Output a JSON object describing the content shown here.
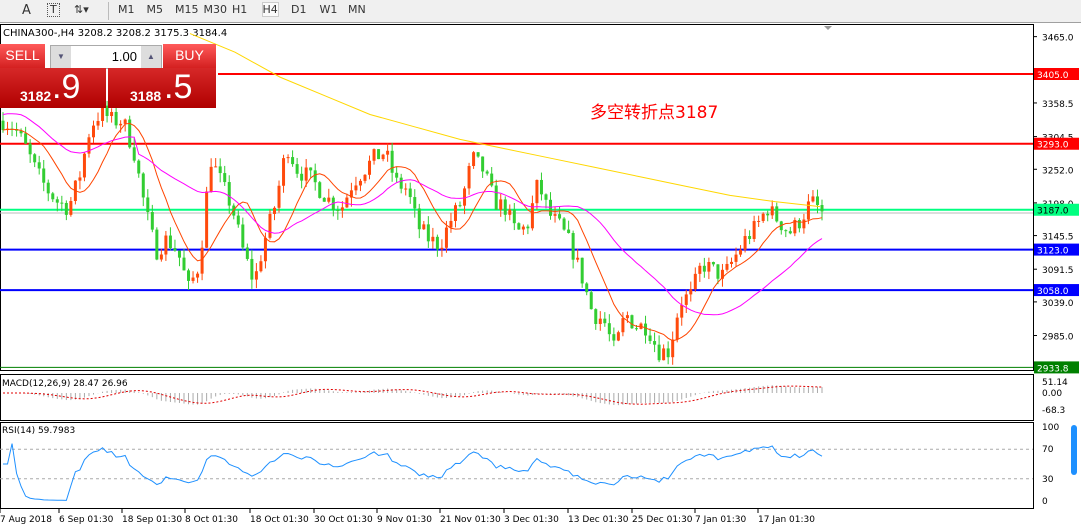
{
  "toolbar": {
    "tools": [
      "A",
      "T"
    ],
    "timeframes": [
      "M1",
      "M5",
      "M15",
      "M30",
      "H1",
      "H4",
      "D1",
      "W1",
      "MN"
    ],
    "active": "H4"
  },
  "header": {
    "symbol_info": "CHINA300-,H4  3208.2 3208.2 3175.3 3184.4"
  },
  "trade": {
    "sell_label": "SELL",
    "buy_label": "BUY",
    "lots": "1.00",
    "sell_main": "3182",
    "sell_frac": ".9",
    "buy_main": "3188",
    "buy_frac": ".5"
  },
  "annotation": "多空转折点3187",
  "colors": {
    "up": "#ff4a0c",
    "down": "#32cd32",
    "ma_fast": "#ff4500",
    "ma_mid": "#ff00ff",
    "ma_slow": "#ffd700",
    "rsi": "#1e90ff",
    "macd_signal": "#e00000"
  },
  "levels": [
    {
      "price": 3405.0,
      "label": "3405.0",
      "color": "#ff0000"
    },
    {
      "price": 3293.0,
      "label": "3293.0",
      "color": "#ff0000"
    },
    {
      "price": 3187.0,
      "label": "3187.0",
      "color": "#00ff80"
    },
    {
      "price": 3123.0,
      "label": "3123.0",
      "color": "#0000ff"
    },
    {
      "price": 3058.0,
      "label": "3058.0",
      "color": "#0000ff"
    },
    {
      "price": 2933.8,
      "label": "2933.8",
      "color": "#008000"
    }
  ],
  "price_axis": [
    "3465.0",
    "3358.5",
    "3304.5",
    "3252.0",
    "3198.0",
    "3145.5",
    "3091.5",
    "3039.0",
    "2985.0"
  ],
  "macd": {
    "label": "MACD(12,26,9) 28.47 26.96",
    "axis": [
      "51.14",
      "0.00",
      "-68.3"
    ]
  },
  "rsi": {
    "label": "RSI(14) 59.7983",
    "axis": [
      "100",
      "70",
      "30",
      "0"
    ]
  },
  "time_axis": [
    "7 Aug 2018",
    "6 Sep 01:30",
    "18 Sep 01:30",
    "8 Oct 01:30",
    "18 Oct 01:30",
    "30 Oct 01:30",
    "9 Nov 01:30",
    "21 Nov 01:30",
    "3 Dec 01:30",
    "13 Dec 01:30",
    "25 Dec 01:30",
    "7 Jan 01:30",
    "17 Jan 01:30"
  ],
  "chart_data": {
    "type": "candlestick",
    "close_path": [
      3330,
      3320,
      3290,
      3250,
      3220,
      3200,
      3190,
      3240,
      3320,
      3345,
      3330,
      3330,
      3280,
      3190,
      3120,
      3140,
      3120,
      3060,
      3100,
      3270,
      3230,
      3190,
      3120,
      3070,
      3140,
      3200,
      3290,
      3250,
      3240,
      3220,
      3200,
      3190,
      3230,
      3250,
      3270,
      3280,
      3230,
      3220,
      3160,
      3140,
      3130,
      3170,
      3200,
      3270,
      3250,
      3200,
      3190,
      3150,
      3160,
      3230,
      3180,
      3160,
      3130,
      3080,
      3020,
      3010,
      2960,
      3020,
      3000,
      3000,
      2960,
      2960,
      3040,
      3050,
      3100,
      3090,
      3080,
      3110,
      3140,
      3160,
      3190,
      3170,
      3150,
      3170,
      3200,
      3184.4
    ],
    "ma_slow_path": [
      3470,
      3440,
      3400,
      3370,
      3340,
      3320,
      3300,
      3285,
      3270,
      3255,
      3240,
      3225,
      3210,
      3200,
      3192
    ]
  }
}
